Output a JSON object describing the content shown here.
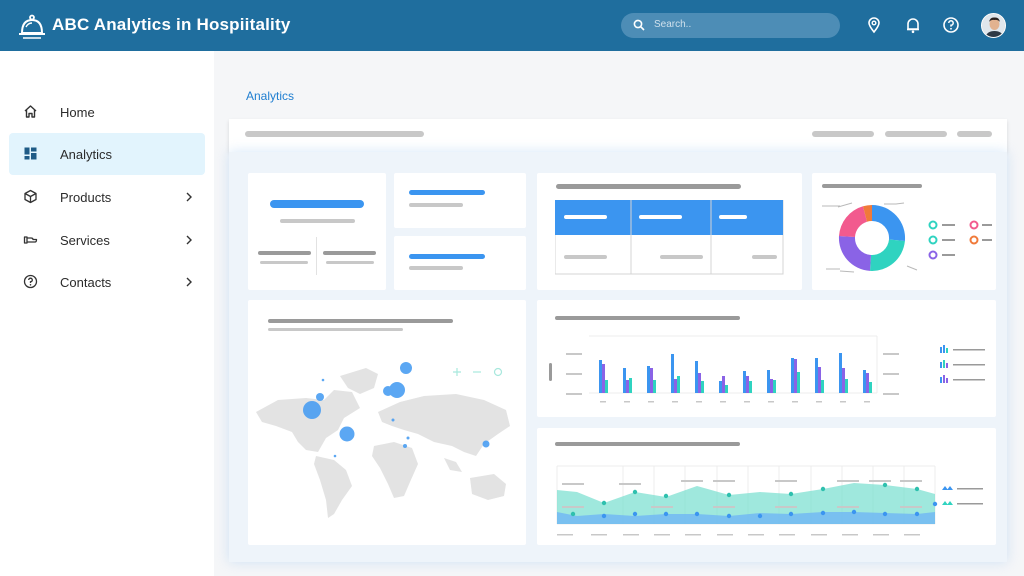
{
  "header": {
    "title": "ABC Analytics in Hospiitality",
    "search_placeholder": "Search..",
    "icons": [
      "location-icon",
      "bell-icon",
      "help-icon"
    ]
  },
  "sidebar": {
    "items": [
      {
        "label": "Home",
        "icon": "home-icon",
        "has_chevron": false,
        "active": false
      },
      {
        "label": "Analytics",
        "icon": "dashboard-icon",
        "has_chevron": false,
        "active": true
      },
      {
        "label": "Products",
        "icon": "box-icon",
        "has_chevron": true,
        "active": false
      },
      {
        "label": "Services",
        "icon": "service-icon",
        "has_chevron": true,
        "active": false
      },
      {
        "label": "Contacts",
        "icon": "help-circle-icon",
        "has_chevron": true,
        "active": false
      }
    ]
  },
  "main": {
    "page_title": "Analytics"
  },
  "colors": {
    "header_bg": "#1f6e9e",
    "accent_blue": "#3b95f0",
    "active_nav_bg": "#e2f4fd",
    "teal": "#2fd3c0",
    "purple": "#8a63e6",
    "pink": "#f25a8e",
    "orange": "#f07a3a"
  }
}
